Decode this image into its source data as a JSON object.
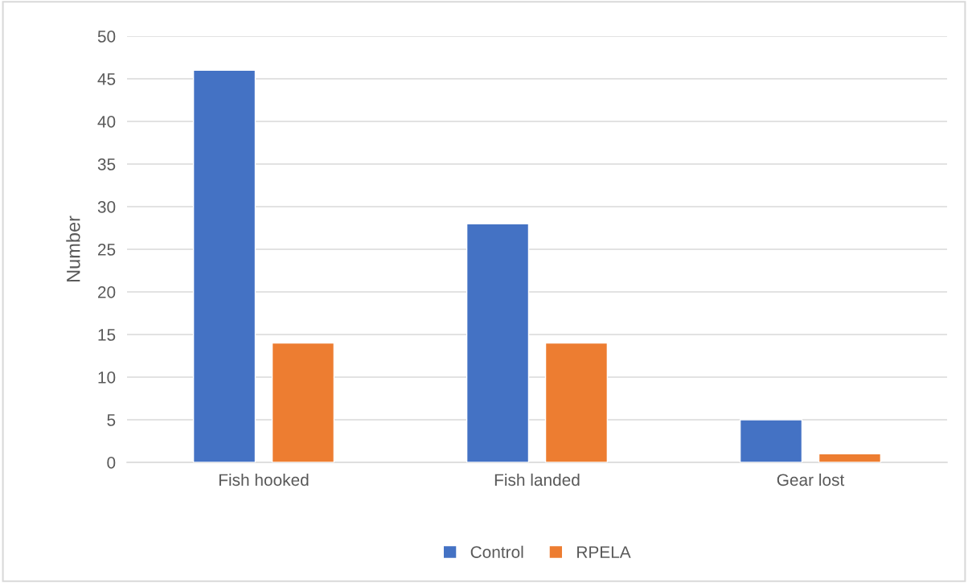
{
  "chart_data": {
    "type": "bar",
    "ylabel": "Number",
    "categories": [
      "Fish hooked",
      "Fish landed",
      "Gear lost"
    ],
    "series": [
      {
        "name": "Control",
        "color": "#4472c4",
        "values": [
          46,
          28,
          5
        ]
      },
      {
        "name": "RPELA",
        "color": "#ed7d31",
        "values": [
          14,
          14,
          1
        ]
      }
    ],
    "ylim": [
      0,
      50
    ],
    "yticks": [
      0,
      5,
      10,
      15,
      20,
      25,
      30,
      35,
      40,
      45,
      50
    ],
    "grid": "y",
    "legend": "bottom"
  }
}
